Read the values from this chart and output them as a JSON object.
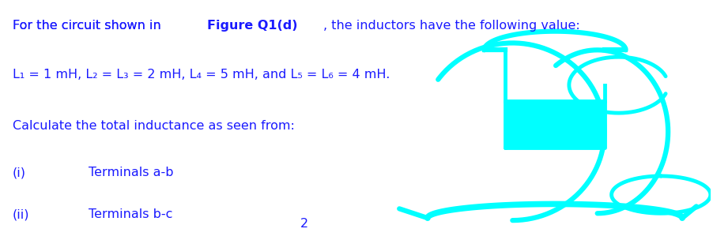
{
  "bg_color": "#ffffff",
  "text_color": "#1a1aff",
  "cyan_color": "#00ffff",
  "line1_normal": "For the circuit shown in ",
  "line1_bold": "Figure Q1(d)",
  "line1_rest": ", the inductors have the following value:",
  "line2": "L₁ = 1 mH, L₂ = L₃ = 2 mH, L₄ = 5 mH, and L₅ = L₆ = 4 mH.",
  "line3": "Calculate the total inductance as seen from:",
  "item_i_label": "(i)",
  "item_i_text": "Terminals a-b",
  "item_ii_label": "(ii)",
  "item_ii_text": "Terminals b-c",
  "page_number": "2",
  "font_size": 11.5,
  "font_family": "DejaVu Sans"
}
